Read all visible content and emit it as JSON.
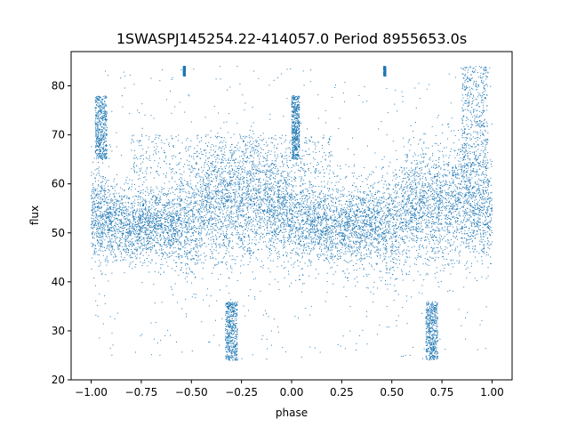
{
  "chart_data": {
    "type": "scatter",
    "title": "1SWASPJ145254.22-414057.0 Period 8955653.0s",
    "xlabel": "phase",
    "ylabel": "flux",
    "xlim": [
      -1.1,
      1.1
    ],
    "ylim": [
      20,
      87
    ],
    "xticks": [
      -1.0,
      -0.75,
      -0.5,
      -0.25,
      0.0,
      0.25,
      0.5,
      0.75,
      1.0
    ],
    "xtick_labels": [
      "−1.00",
      "−0.75",
      "−0.50",
      "−0.25",
      "0.00",
      "0.25",
      "0.50",
      "0.75",
      "1.00"
    ],
    "yticks": [
      20,
      30,
      40,
      50,
      60,
      70,
      80
    ],
    "ytick_labels": [
      "20",
      "30",
      "40",
      "50",
      "60",
      "70",
      "80"
    ],
    "grid": false,
    "marker_color": "#1f77b4",
    "phase_profile": {
      "description_free": true,
      "x": [
        -1.0,
        -0.95,
        -0.9,
        -0.85,
        -0.8,
        -0.75,
        -0.7,
        -0.65,
        -0.6,
        -0.55,
        -0.5,
        -0.45,
        -0.4,
        -0.35,
        -0.3,
        -0.25,
        -0.2,
        -0.15,
        -0.1,
        -0.05,
        0.0,
        0.05,
        0.1,
        0.15,
        0.2,
        0.25,
        0.3,
        0.35,
        0.4,
        0.45,
        0.5,
        0.55,
        0.6,
        0.65,
        0.7,
        0.75,
        0.8,
        0.85,
        0.9,
        0.95,
        1.0
      ],
      "median_flux": [
        54,
        53,
        52,
        52,
        51,
        52,
        52,
        52,
        52,
        52,
        51,
        54,
        56,
        56,
        55,
        56,
        57,
        56,
        55,
        55,
        54,
        53,
        52,
        52,
        51,
        52,
        52,
        52,
        52,
        52,
        51,
        54,
        56,
        56,
        55,
        56,
        57,
        56,
        55,
        55,
        54
      ],
      "spread": [
        5,
        5,
        4,
        4,
        4,
        4,
        4,
        4,
        4,
        5,
        6,
        5,
        6,
        6,
        6,
        6,
        6,
        6,
        5,
        5,
        5,
        5,
        4,
        4,
        4,
        4,
        4,
        4,
        4,
        5,
        6,
        5,
        6,
        6,
        6,
        6,
        6,
        6,
        5,
        5,
        5
      ]
    },
    "features": [
      {
        "x": [
          -0.98,
          -0.92
        ],
        "y": [
          65,
          78
        ]
      },
      {
        "x": 0.02,
        "y": [
          65,
          78
        ]
      },
      {
        "x": [
          -0.54,
          -0.53
        ],
        "y": [
          82,
          84
        ]
      },
      {
        "x": [
          0.46,
          0.47
        ],
        "y": [
          82,
          84
        ]
      },
      {
        "x": [
          -0.33,
          -0.27
        ],
        "y": [
          24,
          36
        ]
      },
      {
        "x": [
          0.67,
          0.73
        ],
        "y": [
          24,
          36
        ]
      },
      {
        "x": [
          -0.8,
          0.2
        ],
        "y": [
          62,
          70
        ]
      },
      {
        "x": [
          0.85,
          0.98
        ],
        "y": [
          62,
          84
        ]
      }
    ]
  }
}
